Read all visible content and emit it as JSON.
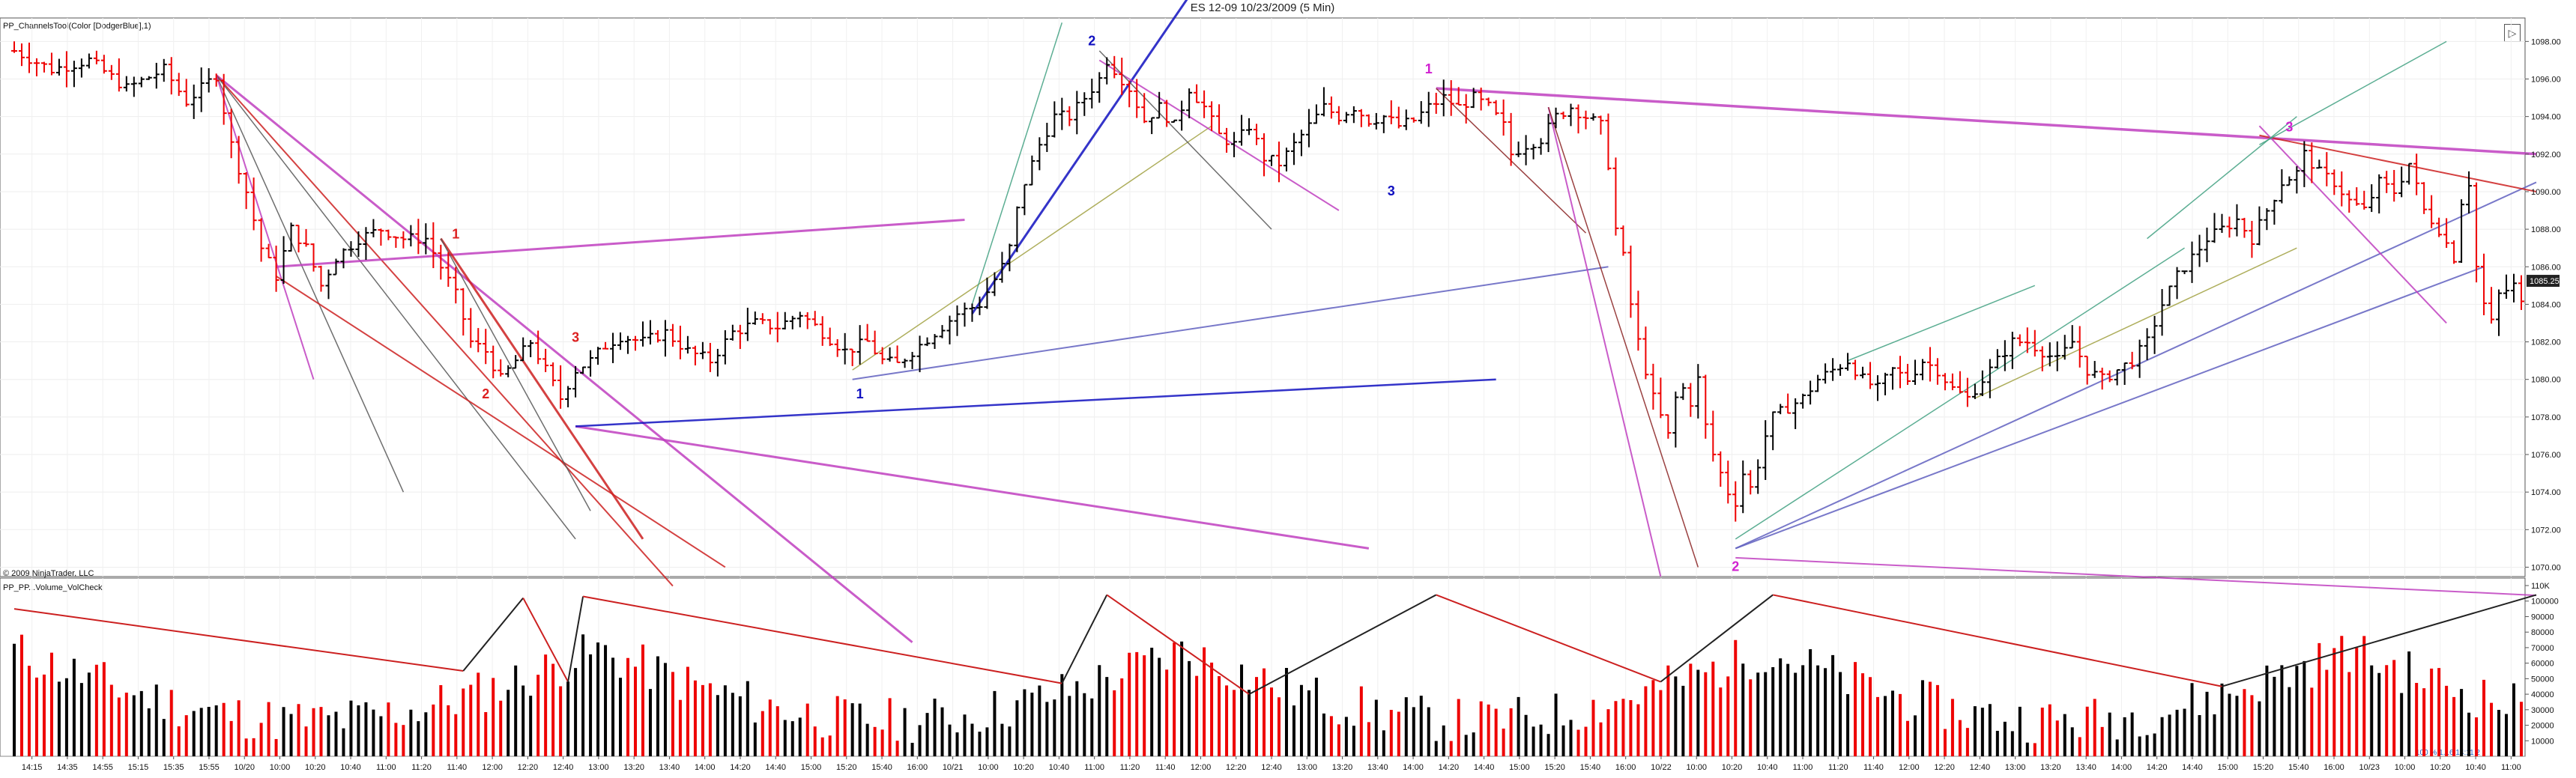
{
  "window": {
    "title": "ES 12-09  10/23/2009 (5 Min)"
  },
  "price_panel": {
    "indicator_label": "PP_ChannelsTool(Color [DodgerBlue],1)",
    "copyright": "© 2009 NinjaTrader, LLC",
    "current_price": "1085.25"
  },
  "volume_panel": {
    "indicator_label": "PP_PP...Volume_VolCheck",
    "status_text": "100 % 1.16 14:11 2"
  },
  "icons": {
    "window_toggle": "collapse-toggle-icon"
  },
  "colors": {
    "up_bar": "#000000",
    "down_bar": "#ee0000",
    "channel_blue": "#1010c0",
    "channel_violet": "#c040c0",
    "channel_red": "#cc2020",
    "channel_slate": "#6060c0",
    "channel_green": "#40a080",
    "price_label_bg": "#222222"
  },
  "chart_data": [
    {
      "type": "ohlc",
      "title": "ES 12-09  10/23/2009 (5 Min)",
      "y_axis": {
        "ticks": [
          "1098.00",
          "1096.00",
          "1094.00",
          "1092.00",
          "1090.00",
          "1088.00",
          "1086.00",
          "1084.00",
          "1082.00",
          "1080.00",
          "1078.00",
          "1076.00",
          "1074.00",
          "1072.00",
          "1070.00"
        ],
        "ylim": [
          1069.5,
          1099.25
        ]
      },
      "x_axis": {
        "ticks": [
          "14:15",
          "14:35",
          "14:55",
          "15:15",
          "15:35",
          "15:55",
          "10/20",
          "10:00",
          "10:20",
          "10:40",
          "11:00",
          "11:20",
          "11:40",
          "12:00",
          "12:20",
          "12:40",
          "13:00",
          "13:20",
          "13:40",
          "14:00",
          "14:20",
          "14:40",
          "15:00",
          "15:20",
          "15:40",
          "16:00",
          "10/21",
          "10:00",
          "10:20",
          "10:40",
          "11:00",
          "11:20",
          "11:40",
          "12:00",
          "12:20",
          "12:40",
          "13:00",
          "13:20",
          "13:40",
          "14:00",
          "14:20",
          "14:40",
          "15:00",
          "15:20",
          "15:40",
          "16:00",
          "10/22",
          "10:00",
          "10:20",
          "10:40",
          "11:00",
          "11:20",
          "11:40",
          "12:00",
          "12:20",
          "12:40",
          "13:00",
          "13:20",
          "13:40",
          "14:00",
          "14:20",
          "14:40",
          "15:00",
          "15:20",
          "15:40",
          "16:00",
          "10/23",
          "10:00",
          "10:20",
          "10:40",
          "11:00"
        ]
      },
      "close_path": [
        [
          0,
          1097.5
        ],
        [
          5,
          1096.5
        ],
        [
          10,
          1097.0
        ],
        [
          15,
          1095.5
        ],
        [
          20,
          1096.5
        ],
        [
          23,
          1094.8
        ],
        [
          25,
          1095.5
        ],
        [
          27,
          1096.2
        ],
        [
          29,
          1092.5
        ],
        [
          31,
          1090.0
        ],
        [
          33,
          1087.0
        ],
        [
          35,
          1085.5
        ],
        [
          37,
          1088.0
        ],
        [
          39,
          1087.0
        ],
        [
          41,
          1085.0
        ],
        [
          43,
          1086.5
        ],
        [
          46,
          1087.5
        ],
        [
          49,
          1088.0
        ],
        [
          52,
          1087.5
        ],
        [
          55,
          1087.5
        ],
        [
          57,
          1086.0
        ],
        [
          59,
          1084.5
        ],
        [
          61,
          1082.0
        ],
        [
          63,
          1081.5
        ],
        [
          65,
          1080.0
        ],
        [
          67,
          1081.0
        ],
        [
          69,
          1082.0
        ],
        [
          71,
          1080.5
        ],
        [
          73,
          1079.0
        ],
        [
          75,
          1080.5
        ],
        [
          77,
          1081.0
        ],
        [
          79,
          1081.8
        ],
        [
          81,
          1082.3
        ],
        [
          84,
          1082.0
        ],
        [
          87,
          1082.5
        ],
        [
          90,
          1081.5
        ],
        [
          93,
          1081.0
        ],
        [
          96,
          1082.5
        ],
        [
          99,
          1083.0
        ],
        [
          102,
          1082.8
        ],
        [
          105,
          1083.5
        ],
        [
          108,
          1082.5
        ],
        [
          111,
          1081.5
        ],
        [
          114,
          1082.0
        ],
        [
          116,
          1081.0
        ],
        [
          118,
          1080.8
        ],
        [
          120,
          1081.5
        ],
        [
          123,
          1082.5
        ],
        [
          126,
          1083.5
        ],
        [
          129,
          1084.0
        ],
        [
          132,
          1086.0
        ],
        [
          133,
          1087.0
        ],
        [
          134,
          1089.0
        ],
        [
          135,
          1090.5
        ],
        [
          137,
          1092.5
        ],
        [
          139,
          1094.0
        ],
        [
          141,
          1094.0
        ],
        [
          143,
          1095.0
        ],
        [
          145,
          1096.0
        ],
        [
          146,
          1097.0
        ],
        [
          148,
          1096.0
        ],
        [
          149,
          1095.5
        ],
        [
          151,
          1093.8
        ],
        [
          153,
          1094.5
        ],
        [
          155,
          1093.5
        ],
        [
          157,
          1095.5
        ],
        [
          159,
          1094.5
        ],
        [
          161,
          1093.0
        ],
        [
          163,
          1092.5
        ],
        [
          165,
          1093.5
        ],
        [
          167,
          1091.8
        ],
        [
          169,
          1091.5
        ],
        [
          171,
          1092.5
        ],
        [
          173,
          1093.5
        ],
        [
          175,
          1094.5
        ],
        [
          177,
          1094.0
        ],
        [
          179,
          1094.5
        ],
        [
          181,
          1093.8
        ],
        [
          183,
          1094.0
        ],
        [
          185,
          1093.5
        ],
        [
          187,
          1093.8
        ],
        [
          189,
          1094.5
        ],
        [
          191,
          1095.0
        ],
        [
          193,
          1094.5
        ],
        [
          195,
          1095.0
        ],
        [
          197,
          1094.5
        ],
        [
          199,
          1093.5
        ],
        [
          200,
          1092.0
        ],
        [
          202,
          1092.5
        ],
        [
          204,
          1092.8
        ],
        [
          206,
          1094.0
        ],
        [
          208,
          1094.5
        ],
        [
          210,
          1094.0
        ],
        [
          212,
          1093.5
        ],
        [
          213,
          1091.5
        ],
        [
          214,
          1088.0
        ],
        [
          215,
          1086.5
        ],
        [
          216,
          1084.0
        ],
        [
          217,
          1082.0
        ],
        [
          218,
          1080.5
        ],
        [
          219,
          1079.0
        ],
        [
          220,
          1078.0
        ],
        [
          221,
          1077.0
        ],
        [
          222,
          1079.0
        ],
        [
          223,
          1079.5
        ],
        [
          224,
          1078.8
        ],
        [
          225,
          1080.0
        ],
        [
          226,
          1077.5
        ],
        [
          227,
          1076.0
        ],
        [
          228,
          1075.0
        ],
        [
          229,
          1074.0
        ],
        [
          230,
          1073.5
        ],
        [
          231,
          1075.0
        ],
        [
          232,
          1074.2
        ],
        [
          233,
          1075.5
        ],
        [
          234,
          1077.0
        ],
        [
          235,
          1078.0
        ],
        [
          237,
          1078.5
        ],
        [
          239,
          1079.0
        ],
        [
          241,
          1080.0
        ],
        [
          243,
          1080.5
        ],
        [
          245,
          1081.0
        ],
        [
          247,
          1080.0
        ],
        [
          249,
          1079.5
        ],
        [
          251,
          1080.5
        ],
        [
          253,
          1080.0
        ],
        [
          255,
          1081.0
        ],
        [
          257,
          1080.5
        ],
        [
          259,
          1079.5
        ],
        [
          261,
          1079.0
        ],
        [
          263,
          1080.0
        ],
        [
          265,
          1081.0
        ],
        [
          267,
          1082.0
        ],
        [
          269,
          1082.0
        ],
        [
          271,
          1081.5
        ],
        [
          273,
          1081.0
        ],
        [
          275,
          1082.0
        ],
        [
          277,
          1080.5
        ],
        [
          279,
          1080.0
        ],
        [
          281,
          1080.5
        ],
        [
          283,
          1081.0
        ],
        [
          285,
          1082.0
        ],
        [
          287,
          1084.0
        ],
        [
          289,
          1085.5
        ],
        [
          291,
          1086.5
        ],
        [
          293,
          1087.5
        ],
        [
          295,
          1088.0
        ],
        [
          297,
          1088.5
        ],
        [
          299,
          1087.5
        ],
        [
          301,
          1089.0
        ],
        [
          303,
          1090.5
        ],
        [
          305,
          1091.0
        ],
        [
          306,
          1092.0
        ],
        [
          308,
          1091.0
        ],
        [
          310,
          1090.5
        ],
        [
          312,
          1089.5
        ],
        [
          314,
          1089.0
        ],
        [
          316,
          1090.5
        ],
        [
          318,
          1090.0
        ],
        [
          320,
          1091.5
        ],
        [
          322,
          1089.0
        ],
        [
          324,
          1088.0
        ],
        [
          326,
          1086.5
        ],
        [
          327,
          1089.5
        ],
        [
          328,
          1090.5
        ],
        [
          329,
          1086.0
        ],
        [
          330,
          1084.0
        ],
        [
          331,
          1083.0
        ],
        [
          332,
          1084.5
        ],
        [
          334,
          1085.0
        ],
        [
          335,
          1084.0
        ]
      ],
      "annotations": [
        {
          "text": "1",
          "x": 59,
          "y": 1087.5,
          "color": "#dd2020"
        },
        {
          "text": "2",
          "x": 63,
          "y": 1079.0,
          "color": "#dd2020"
        },
        {
          "text": "3",
          "x": 75,
          "y": 1082.0,
          "color": "#dd2020"
        },
        {
          "text": "1",
          "x": 113,
          "y": 1079.0,
          "color": "#1010c0"
        },
        {
          "text": "2",
          "x": 144,
          "y": 1097.8,
          "color": "#1010c0"
        },
        {
          "text": "3",
          "x": 184,
          "y": 1089.8,
          "color": "#1010c0"
        },
        {
          "text": "1",
          "x": 189,
          "y": 1096.3,
          "color": "#d020d0"
        },
        {
          "text": "2",
          "x": 230,
          "y": 1069.8,
          "color": "#d020d0"
        },
        {
          "text": "3",
          "x": 304,
          "y": 1093.2,
          "color": "#d020d0"
        }
      ]
    },
    {
      "type": "bar",
      "series_note": "volume",
      "y_axis": {
        "ticks": [
          "110K",
          "100000",
          "90000",
          "80000",
          "70000",
          "60000",
          "50000",
          "40000",
          "30000",
          "20000",
          "10000"
        ],
        "ylim": [
          0,
          110000
        ]
      },
      "y_max_label": "110K"
    }
  ]
}
